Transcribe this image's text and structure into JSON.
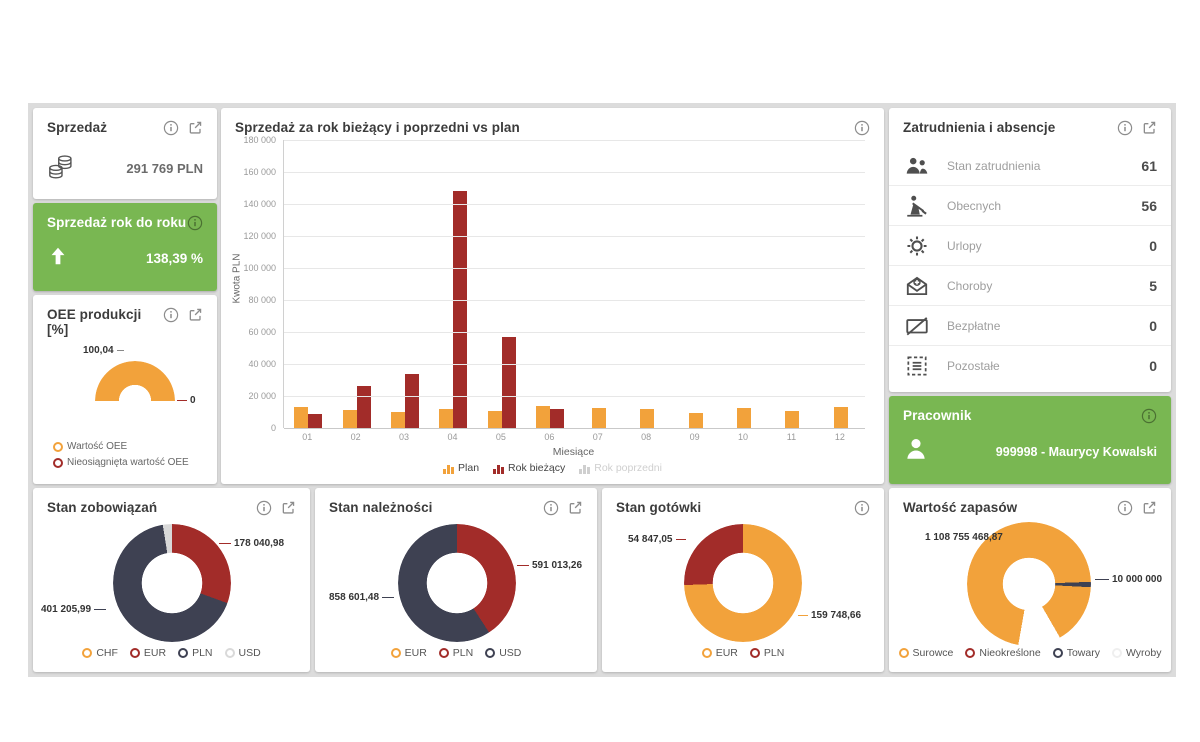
{
  "colors": {
    "orange": "#F2A23B",
    "red": "#A22C29",
    "dark": "#3E4152",
    "light_gray": "#D9D9D9",
    "green": "#79B752",
    "page_bg": "#DCDCDC"
  },
  "cards": {
    "sprzedaz": {
      "title": "Sprzedaż",
      "value": "291 769 PLN"
    },
    "sprzedaz_rok_do_roku": {
      "title": "Sprzedaż rok do roku",
      "value": "138,39 %"
    },
    "oee": {
      "title": "OEE produkcji [%]",
      "max_label": "100,04",
      "min_label": "0"
    },
    "main_chart": {
      "title": "Sprzedaż za rok bieżący i poprzedni vs plan"
    },
    "zatrudnienia": {
      "title": "Zatrudnienia i absencje",
      "rows": [
        {
          "label": "Stan zatrudnienia",
          "value": "61"
        },
        {
          "label": "Obecnych",
          "value": "56"
        },
        {
          "label": "Urlopy",
          "value": "0"
        },
        {
          "label": "Choroby",
          "value": "5"
        },
        {
          "label": "Bezpłatne",
          "value": "0"
        },
        {
          "label": "Pozostałe",
          "value": "0"
        }
      ]
    },
    "pracownik": {
      "title": "Pracownik",
      "value": "999998 - Maurycy Kowalski"
    },
    "zobowiazania": {
      "title": "Stan zobowiązań",
      "label_right": "178 040,98",
      "label_left": "401 205,99"
    },
    "naleznosci": {
      "title": "Stan należności",
      "label_right": "591 013,26",
      "label_left": "858 601,48"
    },
    "gotowki": {
      "title": "Stan gotówki",
      "label_left": "54 847,05",
      "label_right": "159 748,66"
    },
    "zapasy": {
      "title": "Wartość zapasów",
      "label_left": "1 108 755 468,87",
      "label_right": "10 000 000"
    }
  },
  "chart_data": [
    {
      "id": "sales_vs_plan",
      "type": "bar",
      "title": "Sprzedaż za rok bieżący i poprzedni vs plan",
      "xlabel": "Miesiące",
      "ylabel": "Kwota PLN",
      "ylim": [
        0,
        180000
      ],
      "grid": true,
      "legend_position": "bottom",
      "ytick_labels": [
        "180 000",
        "160 000",
        "140 000",
        "120 000",
        "100 000",
        "80 000",
        "60 000",
        "40 000",
        "20 000",
        "0"
      ],
      "categories": [
        "01",
        "02",
        "03",
        "04",
        "05",
        "06",
        "07",
        "08",
        "09",
        "10",
        "11",
        "12"
      ],
      "series": [
        {
          "name": "Plan",
          "color": "#F2A23B",
          "values": [
            13000,
            11000,
            10000,
            12000,
            10500,
            13500,
            12500,
            12000,
            9500,
            12500,
            10500,
            13000
          ]
        },
        {
          "name": "Rok bieżący",
          "color": "#A22C29",
          "values": [
            9000,
            26500,
            33500,
            148000,
            57000,
            12000,
            0,
            0,
            0,
            0,
            0,
            0
          ]
        },
        {
          "name": "Rok poprzedni",
          "color": "#CFCFCF",
          "values": null,
          "disabled": true
        }
      ]
    },
    {
      "id": "oee",
      "type": "gauge",
      "title": "OEE produkcji [%]",
      "gauge_labels": [
        "100,04",
        "0"
      ],
      "slices": [
        {
          "name": "Wartość OEE",
          "color": "#F2A23B",
          "value": 100.04
        },
        {
          "name": "Nieosiągnięta wartość OEE",
          "color": "#A22C29",
          "value": 0
        }
      ]
    },
    {
      "id": "zobowiazania",
      "type": "donut",
      "title": "Stan zobowiązań",
      "slices": [
        {
          "name": "CHF",
          "color": "#F2A23B",
          "value": null
        },
        {
          "name": "EUR",
          "color": "#A22C29",
          "value": 178040.98
        },
        {
          "name": "PLN",
          "color": "#3E4152",
          "value": 401205.99
        },
        {
          "name": "USD",
          "color": "#D9D9D9",
          "value": null
        }
      ],
      "data_labels": [
        "178 040,98",
        "401 205,99"
      ],
      "arcs": [
        [
          "#A22C29",
          0,
          110
        ],
        [
          "#3E4152",
          110,
          351
        ],
        [
          "#D9D9D9",
          351,
          360
        ]
      ]
    },
    {
      "id": "naleznosci",
      "type": "donut",
      "title": "Stan należności",
      "slices": [
        {
          "name": "EUR",
          "color": "#F2A23B",
          "value": null
        },
        {
          "name": "PLN",
          "color": "#A22C29",
          "value": 591013.26
        },
        {
          "name": "USD",
          "color": "#3E4152",
          "value": 858601.48
        }
      ],
      "data_labels": [
        "591 013,26",
        "858 601,48"
      ],
      "arcs": [
        [
          "#A22C29",
          0,
          147
        ],
        [
          "#3E4152",
          147,
          360
        ]
      ]
    },
    {
      "id": "gotowki",
      "type": "donut",
      "title": "Stan gotówki",
      "slices": [
        {
          "name": "EUR",
          "color": "#F2A23B",
          "value": 159748.66
        },
        {
          "name": "PLN",
          "color": "#A22C29",
          "value": 54847.05
        }
      ],
      "data_labels": [
        "159 748,66",
        "54 847,05"
      ],
      "arcs": [
        [
          "#F2A23B",
          0,
          268
        ],
        [
          "#A22C29",
          268,
          360
        ]
      ]
    },
    {
      "id": "zapasy",
      "type": "donut",
      "title": "Wartość zapasów",
      "slices": [
        {
          "name": "Surowce",
          "color": "#F2A23B",
          "value": 1108755468.87
        },
        {
          "name": "Nieokreślone",
          "color": "#A22C29",
          "value": null
        },
        {
          "name": "Towary",
          "color": "#3E4152",
          "value": 10000000
        },
        {
          "name": "Wyroby",
          "color": "#EFEFEF",
          "value": null
        }
      ],
      "data_labels": [
        "1 108 755 468,87",
        "10 000 000"
      ],
      "arcs": [
        [
          "#F2A23B",
          0,
          88
        ],
        [
          "#3E4152",
          88,
          93
        ],
        [
          "#F2A23B",
          93,
          150
        ],
        [
          "#FFFFFF",
          150,
          190
        ],
        [
          "#F2A23B",
          190,
          360
        ]
      ]
    }
  ]
}
